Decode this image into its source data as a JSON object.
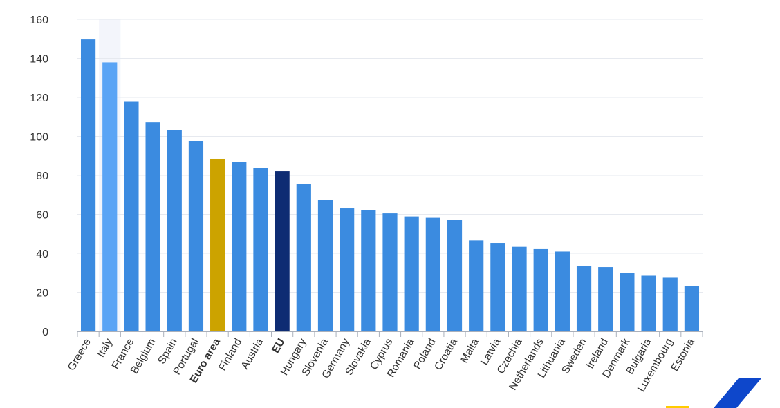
{
  "chart_data": {
    "type": "bar",
    "title": "",
    "xlabel": "",
    "ylabel": "",
    "ylim": [
      0,
      160
    ],
    "yticks": [
      0,
      20,
      40,
      60,
      80,
      100,
      120,
      140,
      160
    ],
    "grid": true,
    "highlighted_category": "Italy",
    "categories": [
      "Greece",
      "Italy",
      "France",
      "Belgium",
      "Spain",
      "Portugal",
      "Euro area",
      "Finland",
      "Austria",
      "EU",
      "Hungary",
      "Slovenia",
      "Germany",
      "Slovakia",
      "Cyprus",
      "Romania",
      "Poland",
      "Croatia",
      "Malta",
      "Latvia",
      "Czechia",
      "Netherlands",
      "Lithuania",
      "Sweden",
      "Ireland",
      "Denmark",
      "Bulgaria",
      "Luxembourg",
      "Estonia"
    ],
    "values": [
      149.7,
      137.9,
      117.7,
      107.2,
      103.2,
      97.7,
      88.5,
      86.9,
      83.8,
      82.1,
      75.4,
      67.5,
      63.0,
      62.3,
      60.5,
      58.9,
      58.2,
      57.3,
      46.6,
      45.3,
      43.3,
      42.5,
      40.9,
      33.4,
      32.9,
      29.8,
      28.5,
      27.8,
      23.1
    ],
    "bold_categories": [
      "Euro area",
      "EU"
    ],
    "colors": {
      "default": "#3b8be0",
      "highlight": "#5aa4f5",
      "euro_area": "#cca300",
      "eu": "#0e2c73",
      "grid": "#e6e9ef",
      "axis": "#aab0bb",
      "hover_band": "#f3f5fb",
      "logo_blue": "#0e47cb",
      "logo_yellow": "#ffcc00"
    },
    "bar_colors": {
      "Italy": "highlight",
      "Euro area": "euro_area",
      "EU": "eu"
    }
  }
}
